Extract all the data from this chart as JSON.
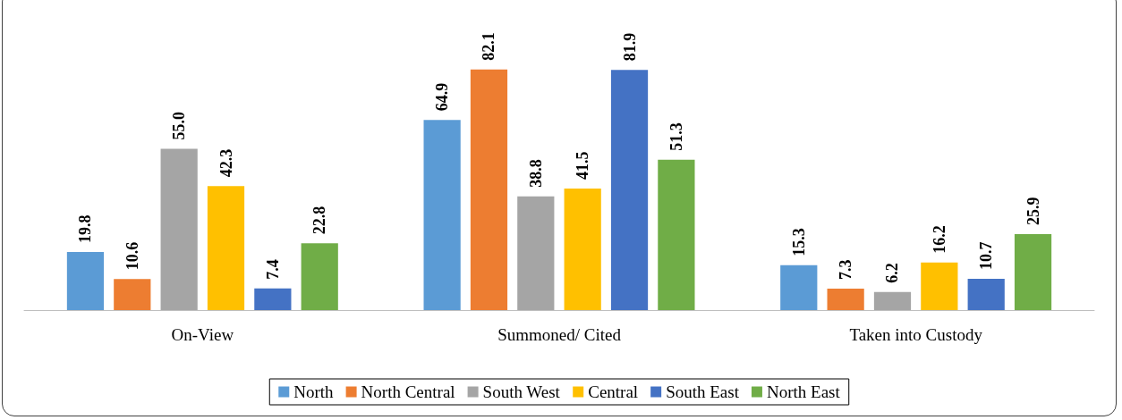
{
  "chart_data": {
    "type": "bar",
    "categories": [
      "On-View",
      "Summoned/ Cited",
      "Taken into Custody"
    ],
    "series": [
      {
        "name": "North",
        "color": "#5b9bd5",
        "values": [
          19.8,
          64.9,
          15.3
        ],
        "value_labels": [
          "19.8",
          "64.9",
          "15.3"
        ]
      },
      {
        "name": "North Central",
        "color": "#ed7d31",
        "values": [
          10.6,
          82.1,
          7.3
        ],
        "value_labels": [
          "10.6",
          "82.1",
          "7.3"
        ]
      },
      {
        "name": "South West",
        "color": "#a5a5a5",
        "values": [
          55.0,
          38.8,
          6.2
        ],
        "value_labels": [
          "55.0",
          "38.8",
          "6.2"
        ]
      },
      {
        "name": "Central",
        "color": "#ffc000",
        "values": [
          42.3,
          41.5,
          16.2
        ],
        "value_labels": [
          "42.3",
          "41.5",
          "16.2"
        ]
      },
      {
        "name": "South East",
        "color": "#4472c4",
        "values": [
          7.4,
          81.9,
          10.7
        ],
        "value_labels": [
          "7.4",
          "81.9",
          "10.7"
        ]
      },
      {
        "name": "North East",
        "color": "#70ad47",
        "values": [
          22.8,
          51.3,
          25.9
        ],
        "value_labels": [
          "22.8",
          "51.3",
          "25.9"
        ]
      }
    ],
    "legend": "bottom",
    "tick_labels": "x"
  }
}
